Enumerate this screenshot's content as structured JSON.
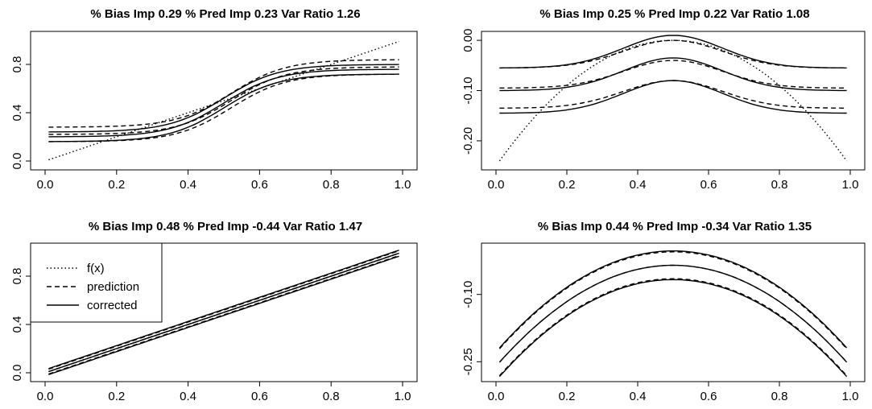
{
  "chart_data": [
    {
      "type": "line",
      "title": "% Bias Imp 0.29  % Pred Imp 0.23  Var Ratio 1.26",
      "xlim": [
        0,
        1
      ],
      "ylim": [
        -0.02,
        1.02
      ],
      "xticks": [
        "0.0",
        "0.2",
        "0.4",
        "0.6",
        "0.8",
        "1.0"
      ],
      "yticks": [
        "0.0",
        "0.4",
        "0.8"
      ],
      "series": [
        {
          "style": "dotted",
          "role": "f(x)",
          "x": [
            0.0,
            1.0
          ],
          "y": [
            0.0,
            1.0
          ]
        },
        {
          "style": "dashed",
          "role": "prediction band",
          "low": 0.22,
          "high": 0.78,
          "steep": 13,
          "offsets": [
            -0.06,
            0.0,
            0.06
          ],
          "shift": 0.02
        },
        {
          "style": "solid",
          "role": "corrected band",
          "low": 0.2,
          "high": 0.76,
          "steep": 13,
          "offsets": [
            -0.04,
            0.0,
            0.04
          ],
          "shift": 0.0
        }
      ]
    },
    {
      "type": "line",
      "title": "% Bias Imp 0.25  % Pred Imp 0.22  Var Ratio 1.08",
      "xlim": [
        0,
        1
      ],
      "ylim": [
        -0.245,
        0.005
      ],
      "xticks": [
        "0.0",
        "0.2",
        "0.4",
        "0.6",
        "0.8",
        "1.0"
      ],
      "yticks": [
        "-0.20",
        "-0.10",
        "0.00"
      ],
      "series": [
        {
          "style": "dotted",
          "role": "f(x)",
          "curve": "-(x-0.5)^2",
          "x": [
            0.0,
            1.0
          ]
        },
        {
          "style": "dashed",
          "role": "prediction band",
          "base": -0.095,
          "peak": -0.04,
          "offsets": [
            -0.04,
            0.0,
            0.04
          ]
        },
        {
          "style": "solid",
          "role": "corrected band",
          "base": -0.1,
          "peak": -0.035,
          "offsets": [
            -0.045,
            0.0,
            0.045
          ]
        }
      ]
    },
    {
      "type": "line",
      "title": "% Bias Imp 0.48  % Pred Imp -0.44  Var Ratio 1.47",
      "xlim": [
        0,
        1
      ],
      "ylim": [
        -0.02,
        1.02
      ],
      "xticks": [
        "0.0",
        "0.2",
        "0.4",
        "0.6",
        "0.8",
        "1.0"
      ],
      "yticks": [
        "0.0",
        "0.4",
        "0.8"
      ],
      "legend": {
        "placement": "top-left",
        "entries": [
          {
            "label": "f(x)",
            "style": "dotted"
          },
          {
            "label": "prediction",
            "style": "dashed"
          },
          {
            "label": "corrected",
            "style": "solid"
          }
        ]
      },
      "series": [
        {
          "style": "dotted",
          "role": "f(x)",
          "x": [
            0.0,
            1.0
          ],
          "y": [
            0.0,
            1.0
          ]
        },
        {
          "style": "dashed",
          "role": "prediction band",
          "offsets": [
            -0.02,
            0.0,
            0.02
          ]
        },
        {
          "style": "solid",
          "role": "corrected band",
          "offsets": [
            -0.025,
            0.0,
            0.025
          ]
        }
      ]
    },
    {
      "type": "line",
      "title": "% Bias Imp 0.44  % Pred Imp -0.34  Var Ratio 1.35",
      "xlim": [
        0,
        1
      ],
      "ylim": [
        -0.28,
        0.0
      ],
      "xticks": [
        "0.0",
        "0.2",
        "0.4",
        "0.6",
        "0.8",
        "1.0"
      ],
      "yticks": [
        "-0.25",
        "-0.10"
      ],
      "series": [
        {
          "style": "dashed",
          "role": "prediction band",
          "curve": "-(x-0.5)^2",
          "offsets": [
            -0.03,
            0.0,
            0.03
          ]
        },
        {
          "style": "solid",
          "role": "corrected band",
          "curve": "-(x-0.5)^2",
          "offsets": [
            -0.032,
            0.0,
            0.032
          ]
        }
      ]
    }
  ]
}
